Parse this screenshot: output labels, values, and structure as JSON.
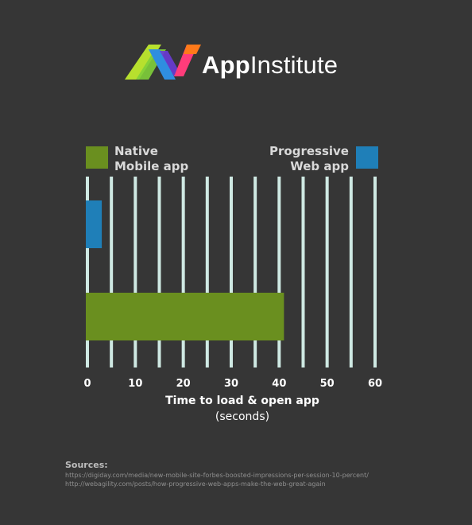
{
  "brand": {
    "name_bold": "App",
    "name_regular": "Institute",
    "colors": [
      "#b7e02e",
      "#2f8ee0",
      "#6a3bd6",
      "#ff3c7a",
      "#ff7a1a"
    ]
  },
  "chart_data": {
    "type": "bar",
    "orientation": "horizontal",
    "categories": [
      "Progressive Web app",
      "Native Mobile app"
    ],
    "series": [
      {
        "name": "Progressive Web app",
        "values": [
          3,
          null
        ],
        "color": "#1f7fb8"
      },
      {
        "name": "Native Mobile app",
        "values": [
          null,
          41
        ],
        "color": "#6a8f1f"
      }
    ],
    "xlim": [
      0,
      60
    ],
    "xticks": [
      0,
      10,
      20,
      30,
      40,
      50,
      60
    ],
    "grid": true,
    "xlabel": "Time to load & open app",
    "xlabel_sub": "(seconds)",
    "legend": [
      {
        "label_line1": "Native",
        "label_line2": "Mobile app",
        "position": "top-left",
        "color": "#6a8f1f"
      },
      {
        "label_line1": "Progressive",
        "label_line2": "Web app",
        "position": "top-right",
        "color": "#1f7fb8"
      }
    ]
  },
  "sources": {
    "title": "Sources:",
    "lines": [
      "https://digiday.com/media/new-mobile-site-forbes-boosted-impressions-per-session-10-percent/",
      "http://webagility.com/posts/how-progressive-web-apps-make-the-web-great-again"
    ]
  }
}
